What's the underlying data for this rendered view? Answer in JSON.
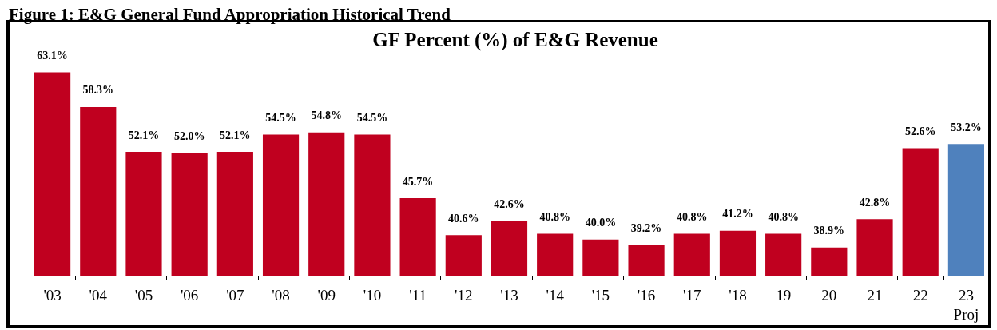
{
  "chart_data": {
    "type": "bar",
    "title": "GF Percent (%) of E&G Revenue",
    "annotations": [
      "Figure 1: E&G General Fund Appropriation Historical Trend"
    ],
    "categories": [
      "'03",
      "'04",
      "'05",
      "'06",
      "'07",
      "'08",
      "'09",
      "'10",
      "'11",
      "'12",
      "'13",
      "'14",
      "'15",
      "'16",
      "'17",
      "'18",
      "19",
      "20",
      "21",
      "22",
      "23\nProj"
    ],
    "values": [
      63.1,
      58.3,
      52.1,
      52.0,
      52.1,
      54.5,
      54.8,
      54.5,
      45.7,
      40.6,
      42.6,
      40.8,
      40.0,
      39.2,
      40.8,
      41.2,
      40.8,
      38.9,
      42.8,
      52.6,
      53.2
    ],
    "value_labels": [
      "63.1%",
      "58.3%",
      "52.1%",
      "52.0%",
      "52.1%",
      "54.5%",
      "54.8%",
      "54.5%",
      "45.7%",
      "40.6%",
      "42.6%",
      "40.8%",
      "40.0%",
      "39.2%",
      "40.8%",
      "41.2%",
      "40.8%",
      "38.9%",
      "42.8%",
      "52.6%",
      "53.2%"
    ],
    "colors": [
      "#c0001f",
      "#c0001f",
      "#c0001f",
      "#c0001f",
      "#c0001f",
      "#c0001f",
      "#c0001f",
      "#c0001f",
      "#c0001f",
      "#c0001f",
      "#c0001f",
      "#c0001f",
      "#c0001f",
      "#c0001f",
      "#c0001f",
      "#c0001f",
      "#c0001f",
      "#c0001f",
      "#c0001f",
      "#c0001f",
      "#4f81bd"
    ],
    "ylim": [
      35,
      70
    ],
    "tick_labels": "x"
  }
}
